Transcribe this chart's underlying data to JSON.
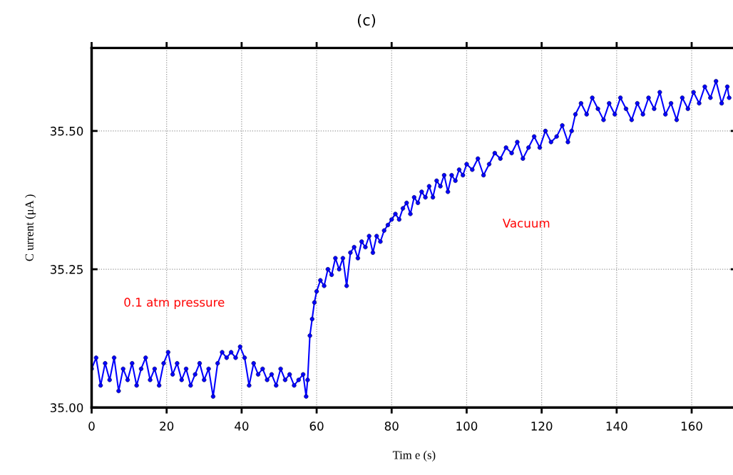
{
  "chart_data": {
    "type": "line",
    "title": "(c)",
    "xlabel": "Tim e (s)",
    "ylabel": "C urrent (μA )",
    "x": [
      0,
      1.2,
      2.4,
      3.6,
      4.8,
      6,
      7.2,
      8.4,
      9.6,
      10.8,
      12,
      13.2,
      14.4,
      15.6,
      16.8,
      18,
      19.2,
      20.4,
      21.6,
      22.8,
      24,
      25.2,
      26.4,
      27.6,
      28.8,
      30,
      31.2,
      32.4,
      33.6,
      34.8,
      36,
      37.2,
      38.4,
      39.6,
      40.8,
      42,
      43.2,
      44.4,
      45.6,
      46.8,
      48,
      49.2,
      50.4,
      51.6,
      52.8,
      54,
      55.2,
      56.4,
      57.2,
      57.6,
      58.2,
      58.8,
      59.4,
      60,
      61,
      62,
      63,
      64,
      65,
      66,
      67,
      68,
      69,
      70,
      71,
      72,
      73,
      74,
      75,
      76,
      77,
      78,
      79,
      80,
      81,
      82,
      83,
      84,
      85,
      86,
      87,
      88,
      89,
      90,
      91,
      92,
      93,
      94,
      95,
      96,
      97,
      98,
      99,
      100,
      101.5,
      103,
      104.5,
      106,
      107.5,
      109,
      110.5,
      112,
      113.5,
      115,
      116.5,
      118,
      119.5,
      121,
      122.5,
      124,
      125.5,
      127,
      128,
      129,
      130.5,
      132,
      133.5,
      135,
      136.5,
      138,
      139.5,
      141,
      142.5,
      144,
      145.5,
      147,
      148.5,
      150,
      151.5,
      153,
      154.5,
      156,
      157.5,
      159,
      160.5,
      162,
      163.5,
      165,
      166.5,
      168,
      169.5,
      170
    ],
    "series": [
      {
        "color": "#0000ff",
        "values": [
          35.07,
          35.09,
          35.04,
          35.08,
          35.05,
          35.09,
          35.03,
          35.07,
          35.05,
          35.08,
          35.04,
          35.07,
          35.09,
          35.05,
          35.07,
          35.04,
          35.08,
          35.1,
          35.06,
          35.08,
          35.05,
          35.07,
          35.04,
          35.06,
          35.08,
          35.05,
          35.07,
          35.02,
          35.08,
          35.1,
          35.09,
          35.1,
          35.09,
          35.11,
          35.09,
          35.04,
          35.08,
          35.06,
          35.07,
          35.05,
          35.06,
          35.04,
          35.07,
          35.05,
          35.06,
          35.04,
          35.05,
          35.06,
          35.02,
          35.05,
          35.13,
          35.16,
          35.19,
          35.21,
          35.23,
          35.22,
          35.25,
          35.24,
          35.27,
          35.25,
          35.27,
          35.22,
          35.28,
          35.29,
          35.27,
          35.3,
          35.29,
          35.31,
          35.28,
          35.31,
          35.3,
          35.32,
          35.33,
          35.34,
          35.35,
          35.34,
          35.36,
          35.37,
          35.35,
          35.38,
          35.37,
          35.39,
          35.38,
          35.4,
          35.38,
          35.41,
          35.4,
          35.42,
          35.39,
          35.42,
          35.41,
          35.43,
          35.42,
          35.44,
          35.43,
          35.45,
          35.42,
          35.44,
          35.46,
          35.45,
          35.47,
          35.46,
          35.48,
          35.45,
          35.47,
          35.49,
          35.47,
          35.5,
          35.48,
          35.49,
          35.51,
          35.48,
          35.5,
          35.53,
          35.55,
          35.53,
          35.56,
          35.54,
          35.52,
          35.55,
          35.53,
          35.56,
          35.54,
          35.52,
          35.55,
          35.53,
          35.56,
          35.54,
          35.57,
          35.53,
          35.55,
          35.52,
          35.56,
          35.54,
          35.57,
          35.55,
          35.58,
          35.56,
          35.59,
          35.55,
          35.58,
          35.56
        ]
      }
    ],
    "xlim": [
      0,
      172
    ],
    "xticks": [
      0,
      20,
      40,
      60,
      80,
      100,
      120,
      140,
      160
    ],
    "ylim": [
      35.0,
      35.65
    ],
    "yticks": [
      {
        "value": 35.0,
        "label": "35.00"
      },
      {
        "value": 35.25,
        "label": "35.25"
      },
      {
        "value": 35.5,
        "label": "35.50"
      }
    ],
    "grid": true,
    "marker": "circle",
    "line_style": "solid",
    "annotations": [
      "0.1 atm pressure",
      "Vacuum"
    ]
  }
}
